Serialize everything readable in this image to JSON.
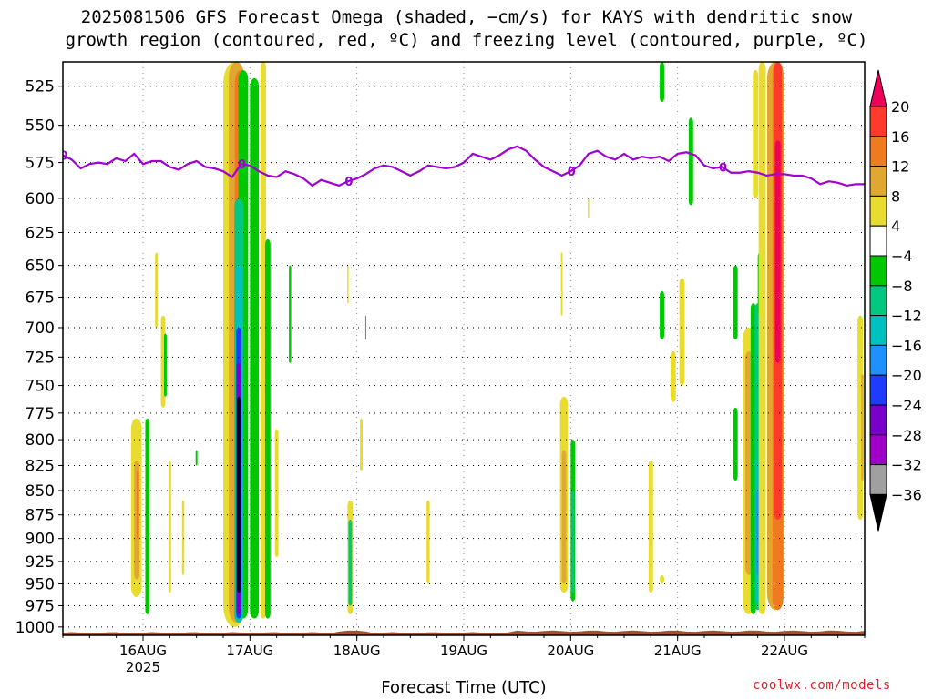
{
  "title_line1": "2025081506 GFS Forecast Omega (shaded, −cm/s) for KAYS with dendritic snow",
  "title_line2": "growth region (contoured, red, ºC) and freezing level (contoured, purple, ºC)",
  "credit": "coolwx.com/models",
  "chart_data": {
    "type": "heatmap",
    "title": "2025081506 GFS Forecast Omega (shaded, −cm/s) for KAYS with dendritic snow growth region (contoured, red, ºC) and freezing level (contoured, purple, ºC)",
    "xlabel": "Forecast Time (UTC)",
    "ylabel": "",
    "x_unit": "hours since 2025-08-15 06Z",
    "xlim": [
      0,
      180
    ],
    "y_scale": "pressure (reversed, top=low)",
    "ylim": [
      1010,
      510
    ],
    "x_ticks": [
      {
        "x": 18,
        "label": "16AUG",
        "sub": "2025"
      },
      {
        "x": 42,
        "label": "17AUG",
        "sub": ""
      },
      {
        "x": 66,
        "label": "18AUG",
        "sub": ""
      },
      {
        "x": 90,
        "label": "19AUG",
        "sub": ""
      },
      {
        "x": 114,
        "label": "20AUG",
        "sub": ""
      },
      {
        "x": 138,
        "label": "21AUG",
        "sub": ""
      },
      {
        "x": 162,
        "label": "22AUG",
        "sub": ""
      }
    ],
    "y_ticks": [
      525,
      550,
      575,
      600,
      625,
      650,
      675,
      700,
      725,
      750,
      775,
      800,
      825,
      850,
      875,
      900,
      925,
      950,
      975,
      1000
    ],
    "grid": true,
    "colorbar": {
      "labels": [
        "20",
        "16",
        "12",
        "8",
        "4",
        "−4",
        "−8",
        "−12",
        "−16",
        "−20",
        "−24",
        "−28",
        "−32",
        "−36"
      ],
      "colors": [
        "#f0005a",
        "#ff3a2a",
        "#f07a20",
        "#e0a830",
        "#e8dc30",
        "#ffffff",
        "#00c800",
        "#00c880",
        "#00c0c0",
        "#1e90ff",
        "#1e3cff",
        "#7800c8",
        "#a000c8",
        "#a0a0a0",
        "#000000"
      ]
    },
    "freezing_level_label": "0",
    "freezing_level": [
      [
        0,
        570
      ],
      [
        2,
        573
      ],
      [
        4,
        579
      ],
      [
        6,
        576
      ],
      [
        8,
        575
      ],
      [
        10,
        576
      ],
      [
        12,
        572
      ],
      [
        14,
        574
      ],
      [
        16,
        569
      ],
      [
        18,
        576
      ],
      [
        20,
        574
      ],
      [
        22,
        574
      ],
      [
        24,
        578
      ],
      [
        26,
        580
      ],
      [
        28,
        576
      ],
      [
        30,
        574
      ],
      [
        32,
        578
      ],
      [
        34,
        579
      ],
      [
        36,
        581
      ],
      [
        38,
        585
      ],
      [
        40,
        576
      ],
      [
        42,
        577
      ],
      [
        44,
        581
      ],
      [
        46,
        584
      ],
      [
        48,
        585
      ],
      [
        50,
        581
      ],
      [
        52,
        583
      ],
      [
        54,
        586
      ],
      [
        56,
        591
      ],
      [
        58,
        587
      ],
      [
        60,
        589
      ],
      [
        62,
        591
      ],
      [
        64,
        588
      ],
      [
        66,
        586
      ],
      [
        68,
        583
      ],
      [
        70,
        579
      ],
      [
        72,
        577
      ],
      [
        74,
        578
      ],
      [
        76,
        581
      ],
      [
        78,
        584
      ],
      [
        80,
        581
      ],
      [
        82,
        577
      ],
      [
        84,
        578
      ],
      [
        86,
        579
      ],
      [
        88,
        578
      ],
      [
        90,
        575
      ],
      [
        92,
        569
      ],
      [
        94,
        571
      ],
      [
        96,
        573
      ],
      [
        98,
        570
      ],
      [
        100,
        566
      ],
      [
        102,
        564
      ],
      [
        104,
        567
      ],
      [
        106,
        573
      ],
      [
        108,
        578
      ],
      [
        110,
        581
      ],
      [
        112,
        584
      ],
      [
        114,
        581
      ],
      [
        116,
        577
      ],
      [
        118,
        569
      ],
      [
        120,
        567
      ],
      [
        122,
        571
      ],
      [
        124,
        573
      ],
      [
        126,
        569
      ],
      [
        128,
        573
      ],
      [
        130,
        571
      ],
      [
        132,
        572
      ],
      [
        134,
        571
      ],
      [
        136,
        574
      ],
      [
        138,
        569
      ],
      [
        140,
        568
      ],
      [
        142,
        570
      ],
      [
        144,
        577
      ],
      [
        146,
        579
      ],
      [
        148,
        578
      ],
      [
        150,
        582
      ],
      [
        152,
        582
      ],
      [
        154,
        581
      ],
      [
        156,
        582
      ],
      [
        158,
        584
      ],
      [
        160,
        583
      ],
      [
        162,
        583
      ],
      [
        164,
        584
      ],
      [
        166,
        584
      ],
      [
        168,
        586
      ],
      [
        170,
        590
      ],
      [
        172,
        588
      ],
      [
        174,
        589
      ],
      [
        176,
        591
      ],
      [
        178,
        590
      ],
      [
        180,
        590
      ]
    ],
    "omega_regions": [
      {
        "x": 16.5,
        "pb": 780,
        "pt": 965,
        "w": 2.4,
        "level": 4
      },
      {
        "x": 16.6,
        "pb": 820,
        "pt": 945,
        "w": 1.2,
        "level": 3
      },
      {
        "x": 16.8,
        "pb": 830,
        "pt": 900,
        "w": 0.5,
        "level": 2
      },
      {
        "x": 19.0,
        "pb": 780,
        "pt": 985,
        "w": 1.0,
        "level": 6
      },
      {
        "x": 22.5,
        "pb": 690,
        "pt": 770,
        "w": 1.0,
        "level": 4
      },
      {
        "x": 23.0,
        "pb": 705,
        "pt": 760,
        "w": 0.6,
        "level": 6
      },
      {
        "x": 21.0,
        "pb": 640,
        "pt": 700,
        "w": 0.6,
        "level": 4
      },
      {
        "x": 24.0,
        "pb": 820,
        "pt": 960,
        "w": 0.6,
        "level": 4
      },
      {
        "x": 27.0,
        "pb": 860,
        "pt": 940,
        "w": 0.5,
        "level": 4
      },
      {
        "x": 30.0,
        "pb": 810,
        "pt": 825,
        "w": 0.4,
        "level": 6
      },
      {
        "x": 38.5,
        "pb": 510,
        "pt": 1000,
        "w": 5.0,
        "level": 4
      },
      {
        "x": 39.0,
        "pb": 510,
        "pt": 995,
        "w": 3.5,
        "level": 3
      },
      {
        "x": 40.0,
        "pb": 515,
        "pt": 990,
        "w": 2.8,
        "level": 2
      },
      {
        "x": 40.5,
        "pb": 515,
        "pt": 990,
        "w": 2.2,
        "level": 6
      },
      {
        "x": 39.5,
        "pb": 600,
        "pt": 995,
        "w": 2.0,
        "level": 7
      },
      {
        "x": 39.5,
        "pb": 650,
        "pt": 995,
        "w": 1.5,
        "level": 8
      },
      {
        "x": 39.5,
        "pb": 700,
        "pt": 990,
        "w": 1.2,
        "level": 10
      },
      {
        "x": 39.5,
        "pb": 730,
        "pt": 985,
        "w": 0.9,
        "level": 11
      },
      {
        "x": 39.5,
        "pb": 760,
        "pt": 960,
        "w": 0.7,
        "level": 14
      },
      {
        "x": 43.0,
        "pb": 520,
        "pt": 990,
        "w": 2.0,
        "level": 6
      },
      {
        "x": 45.0,
        "pb": 510,
        "pt": 990,
        "w": 1.2,
        "level": 4
      },
      {
        "x": 46.0,
        "pb": 630,
        "pt": 990,
        "w": 1.2,
        "level": 6
      },
      {
        "x": 48.0,
        "pb": 790,
        "pt": 920,
        "w": 0.8,
        "level": 4
      },
      {
        "x": 51.0,
        "pb": 650,
        "pt": 730,
        "w": 0.5,
        "level": 6
      },
      {
        "x": 64.5,
        "pb": 860,
        "pt": 985,
        "w": 1.2,
        "level": 4
      },
      {
        "x": 64.5,
        "pb": 880,
        "pt": 975,
        "w": 0.8,
        "level": 7
      },
      {
        "x": 67.0,
        "pb": 780,
        "pt": 830,
        "w": 0.6,
        "level": 4
      },
      {
        "x": 68.0,
        "pb": 690,
        "pt": 710,
        "w": 0.2,
        "level": 6
      },
      {
        "x": 64.0,
        "pb": 650,
        "pt": 680,
        "w": 0.3,
        "level": 4
      },
      {
        "x": 82.0,
        "pb": 860,
        "pt": 950,
        "w": 0.7,
        "level": 4
      },
      {
        "x": 112.5,
        "pb": 760,
        "pt": 960,
        "w": 1.8,
        "level": 4
      },
      {
        "x": 112.5,
        "pb": 810,
        "pt": 950,
        "w": 1.0,
        "level": 3
      },
      {
        "x": 114.5,
        "pb": 800,
        "pt": 970,
        "w": 1.0,
        "level": 6
      },
      {
        "x": 114.5,
        "pb": 850,
        "pt": 960,
        "w": 0.6,
        "level": 7
      },
      {
        "x": 112.0,
        "pb": 640,
        "pt": 690,
        "w": 0.4,
        "level": 4
      },
      {
        "x": 118.0,
        "pb": 600,
        "pt": 615,
        "w": 0.3,
        "level": 4
      },
      {
        "x": 132.0,
        "pb": 820,
        "pt": 960,
        "w": 1.0,
        "level": 4
      },
      {
        "x": 134.5,
        "pb": 510,
        "pt": 535,
        "w": 1.0,
        "level": 6
      },
      {
        "x": 134.5,
        "pb": 670,
        "pt": 710,
        "w": 1.0,
        "level": 6
      },
      {
        "x": 137.0,
        "pb": 720,
        "pt": 765,
        "w": 1.2,
        "level": 4
      },
      {
        "x": 139.0,
        "pb": 660,
        "pt": 750,
        "w": 1.2,
        "level": 4
      },
      {
        "x": 141.0,
        "pb": 545,
        "pt": 605,
        "w": 1.0,
        "level": 6
      },
      {
        "x": 134.5,
        "pb": 940,
        "pt": 950,
        "w": 1.0,
        "level": 4
      },
      {
        "x": 151.0,
        "pb": 650,
        "pt": 710,
        "w": 1.0,
        "level": 6
      },
      {
        "x": 151.0,
        "pb": 770,
        "pt": 840,
        "w": 1.0,
        "level": 6
      },
      {
        "x": 154.0,
        "pb": 700,
        "pt": 985,
        "w": 2.8,
        "level": 4
      },
      {
        "x": 154.0,
        "pb": 720,
        "pt": 940,
        "w": 1.6,
        "level": 3
      },
      {
        "x": 155.0,
        "pb": 680,
        "pt": 985,
        "w": 1.2,
        "level": 6
      },
      {
        "x": 156.0,
        "pb": 680,
        "pt": 980,
        "w": 1.4,
        "level": 7
      },
      {
        "x": 156.0,
        "pb": 820,
        "pt": 970,
        "w": 1.0,
        "level": 8
      },
      {
        "x": 156.0,
        "pb": 850,
        "pt": 940,
        "w": 0.6,
        "level": 9
      },
      {
        "x": 156.5,
        "pb": 640,
        "pt": 690,
        "w": 1.0,
        "level": 6
      },
      {
        "x": 155.5,
        "pb": 515,
        "pt": 600,
        "w": 1.2,
        "level": 4
      },
      {
        "x": 157.0,
        "pb": 510,
        "pt": 985,
        "w": 1.6,
        "level": 4
      },
      {
        "x": 160.0,
        "pb": 510,
        "pt": 980,
        "w": 3.8,
        "level": 3
      },
      {
        "x": 160.5,
        "pb": 510,
        "pt": 980,
        "w": 2.4,
        "level": 2
      },
      {
        "x": 160.5,
        "pb": 510,
        "pt": 880,
        "w": 1.8,
        "level": 1
      },
      {
        "x": 160.5,
        "pb": 560,
        "pt": 730,
        "w": 1.2,
        "level": 0
      },
      {
        "x": 179.0,
        "pb": 690,
        "pt": 880,
        "w": 1.2,
        "level": 4
      },
      {
        "x": 179.5,
        "pb": 740,
        "pt": 840,
        "w": 0.5,
        "level": 3
      }
    ]
  }
}
